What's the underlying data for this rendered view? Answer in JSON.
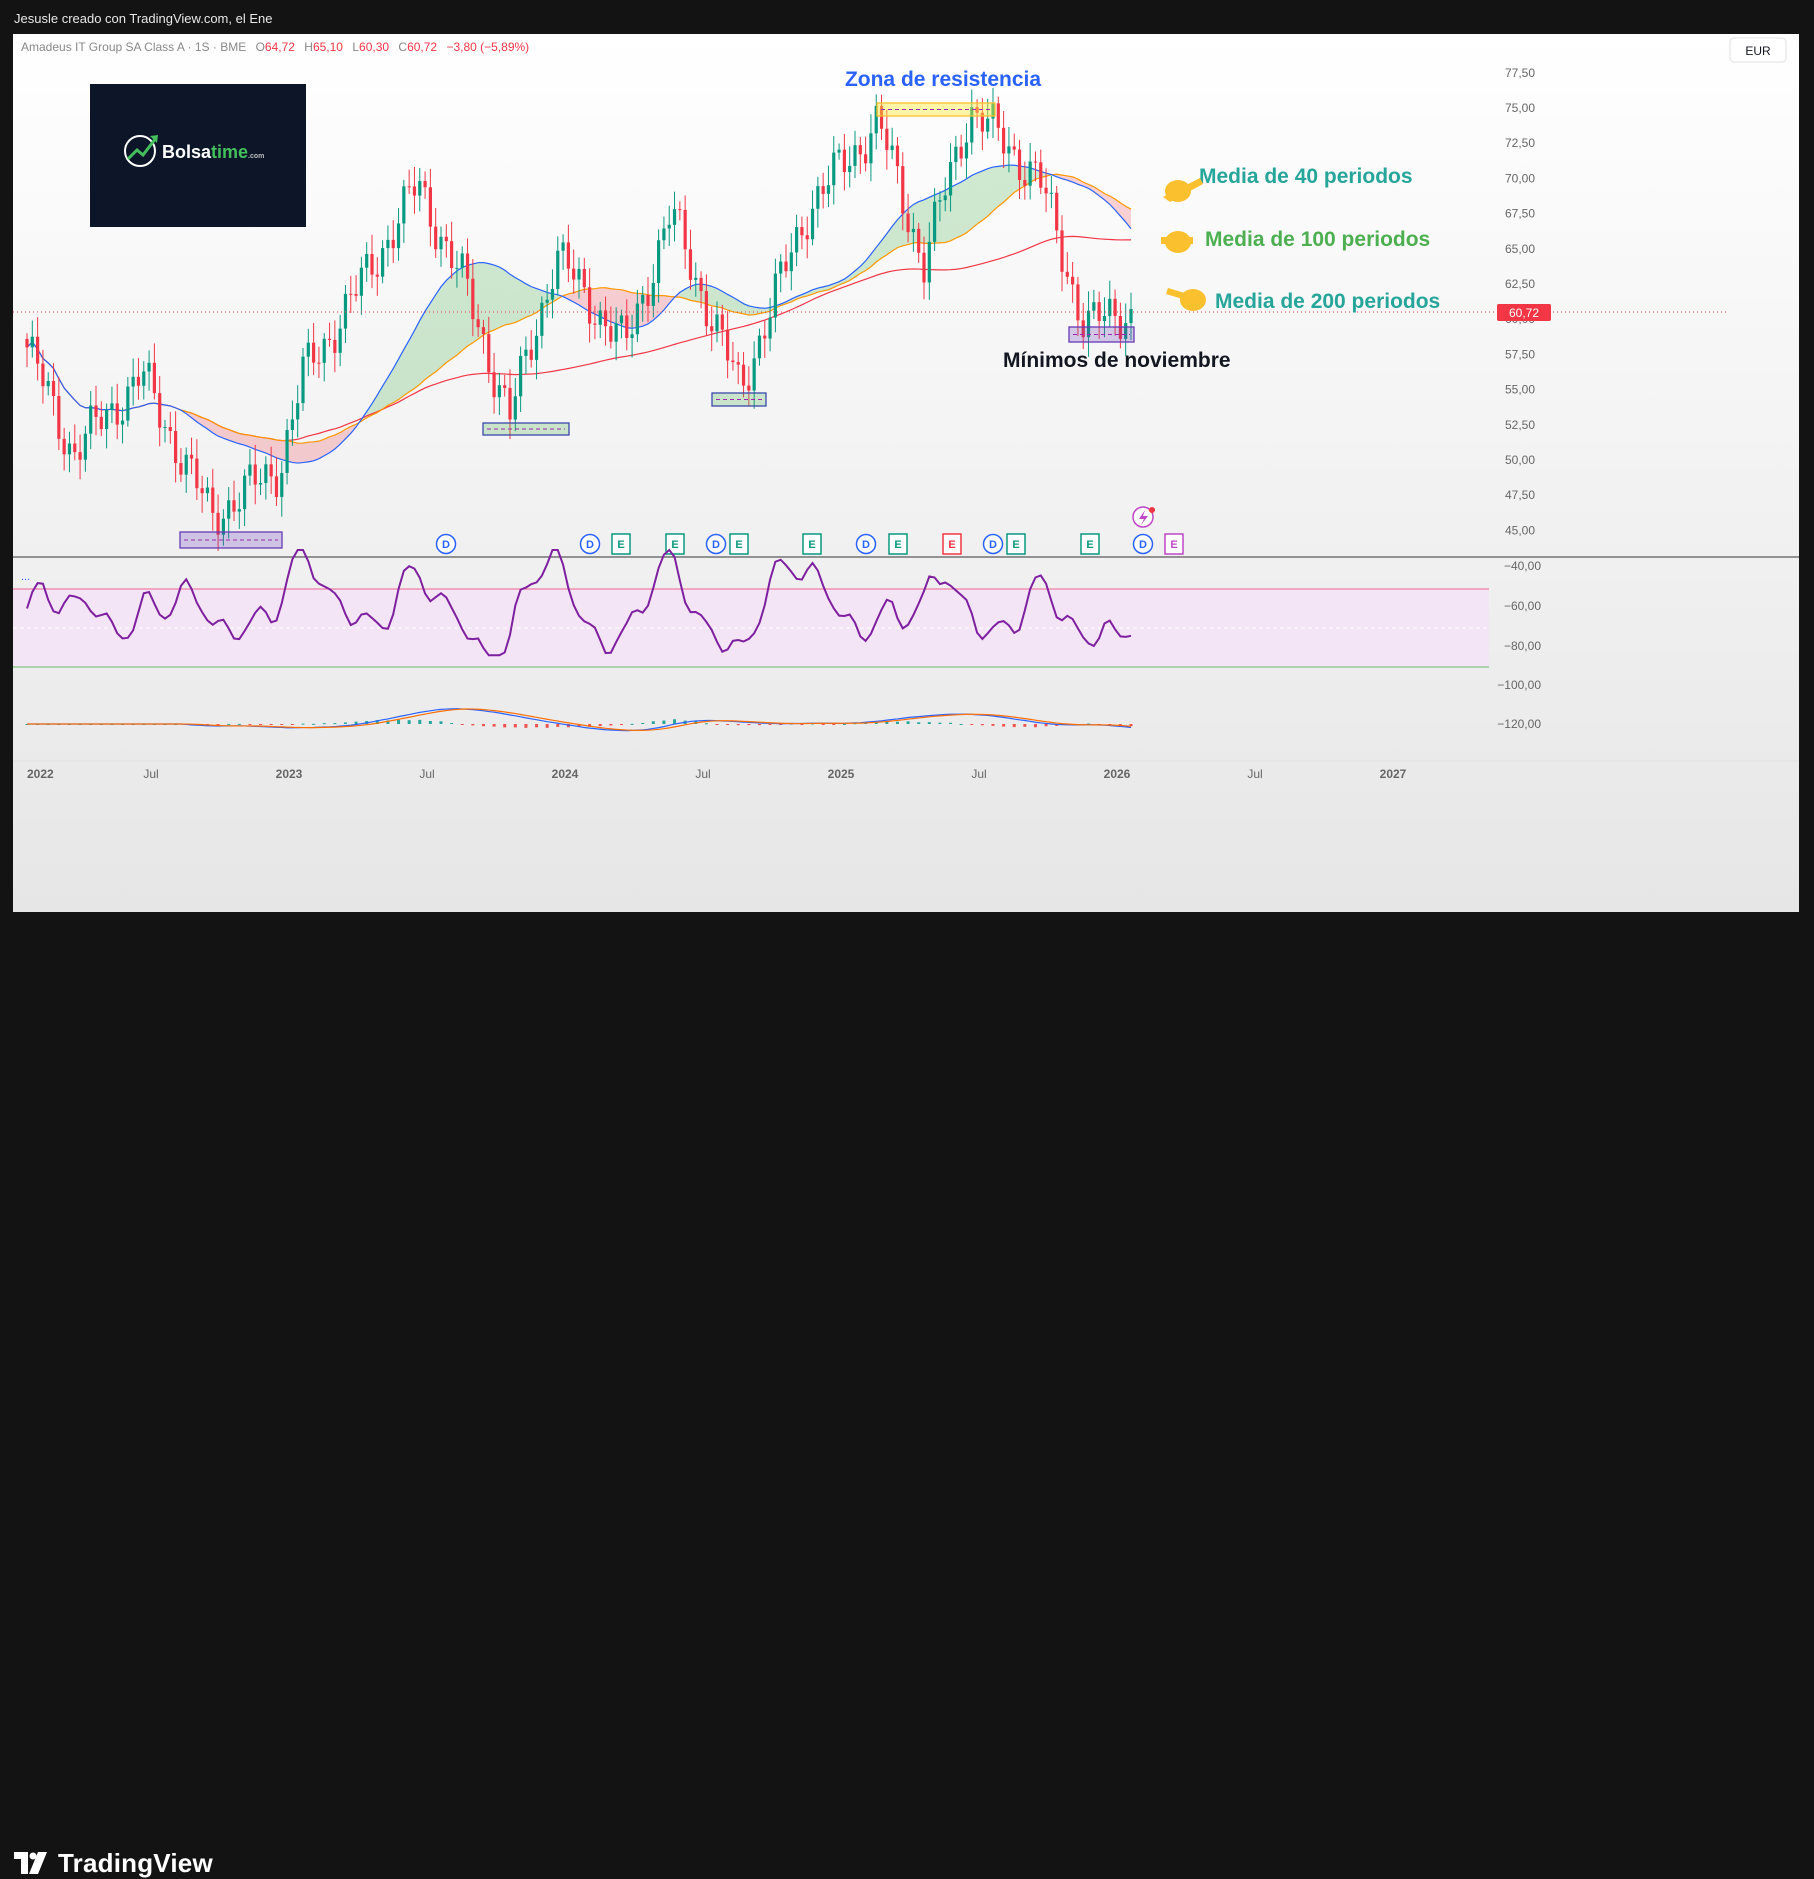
{
  "attribution": "Jesusle creado con TradingView.com, el Ene",
  "legend": {
    "name": "Amadeus IT Group SA Class A · 1S · BME",
    "o_label": "O",
    "o": "64,72",
    "h_label": "H",
    "h": "65,10",
    "l_label": "L",
    "l": "60,30",
    "c_label": "C",
    "c": "60,72",
    "change": "−3,80 (−5,89%)"
  },
  "currency": "EUR",
  "logo": {
    "brand_a": "Bolsa",
    "brand_b": "time",
    "brand_c": ".com"
  },
  "annotations": {
    "resistance": "Zona de resistencia",
    "ma40": "Media de 40 periodos",
    "ma100": "Media de 100 periodos",
    "ma200": "Media de 200 periodos",
    "november_lows": "Mínimos de noviembre"
  },
  "price_axis": {
    "labels": [
      "77,50",
      "75,00",
      "72,50",
      "70,00",
      "67,50",
      "65,00",
      "62,50",
      "60,00",
      "57,50",
      "55,00",
      "52,50",
      "50,00",
      "47,50",
      "45,00"
    ],
    "last_price": "60,72"
  },
  "rsi_axis": {
    "labels": [
      "−40,00",
      "−60,00",
      "−80,00",
      "−100,00",
      "−120,00"
    ],
    "dots": "..."
  },
  "time_axis": [
    "2022",
    "Jul",
    "2023",
    "Jul",
    "2024",
    "Jul",
    "2025",
    "Jul",
    "2026",
    "Jul",
    "2027"
  ],
  "event_markers": [
    {
      "letter": "D",
      "type": "dividend"
    },
    {
      "letter": "D",
      "type": "dividend"
    },
    {
      "letter": "E",
      "type": "earnings"
    },
    {
      "letter": "E",
      "type": "earnings"
    },
    {
      "letter": "D",
      "type": "dividend"
    },
    {
      "letter": "E",
      "type": "earnings"
    },
    {
      "letter": "E",
      "type": "earnings"
    },
    {
      "letter": "D",
      "type": "dividend"
    },
    {
      "letter": "E",
      "type": "earnings"
    },
    {
      "letter": "E",
      "type": "earnings-miss"
    },
    {
      "letter": "D",
      "type": "dividend"
    },
    {
      "letter": "E",
      "type": "earnings"
    },
    {
      "letter": "E",
      "type": "earnings"
    },
    {
      "letter": "D",
      "type": "dividend"
    },
    {
      "letter": "E",
      "type": "earnings-upcoming"
    }
  ],
  "footer_brand": "TradingView",
  "colors": {
    "up": "#089981",
    "down": "#f23645",
    "ma40": "#2962ff",
    "ma100": "#ff9800",
    "ma200": "#f23645",
    "rsi": "#7e1fa0",
    "annotation_blue": "#2962ff",
    "annotation_green": "#26a69a",
    "pointer": "#fbc02d"
  },
  "chart_data": {
    "type": "candlestick",
    "symbol": "Amadeus IT Group SA Class A",
    "interval": "1S",
    "exchange": "BME",
    "currency": "EUR",
    "ylim": [
      44,
      78
    ],
    "x_range": [
      "2021-12",
      "2027-03"
    ],
    "last_close": 60.72,
    "key_points": [
      {
        "date": "2022-01",
        "close": 58.0
      },
      {
        "date": "2022-03",
        "close": 50.5
      },
      {
        "date": "2022-06",
        "close": 56.0
      },
      {
        "date": "2022-09",
        "close": 46.0
      },
      {
        "date": "2022-12",
        "close": 49.5
      },
      {
        "date": "2023-01",
        "close": 56.0
      },
      {
        "date": "2023-03",
        "close": 61.0
      },
      {
        "date": "2023-06",
        "close": 69.5
      },
      {
        "date": "2023-08",
        "close": 62.5
      },
      {
        "date": "2023-10",
        "close": 53.0
      },
      {
        "date": "2023-12",
        "close": 64.5
      },
      {
        "date": "2024-03",
        "close": 58.0
      },
      {
        "date": "2024-05",
        "close": 67.5
      },
      {
        "date": "2024-08",
        "close": 55.0
      },
      {
        "date": "2024-11",
        "close": 68.0
      },
      {
        "date": "2025-02",
        "close": 74.0
      },
      {
        "date": "2025-04",
        "close": 64.0
      },
      {
        "date": "2025-06",
        "close": 75.0
      },
      {
        "date": "2025-09",
        "close": 70.0
      },
      {
        "date": "2025-11",
        "close": 59.5
      },
      {
        "date": "2026-01",
        "close": 60.72
      }
    ],
    "series": [
      {
        "name": "Media de 40 periodos",
        "type": "line",
        "last": 68.0
      },
      {
        "name": "Media de 100 periodos",
        "type": "line",
        "last": 66.0
      },
      {
        "name": "Media de 200 periodos",
        "type": "line",
        "last": 62.0
      }
    ],
    "oscillator": {
      "ylim": [
        -125,
        -38
      ],
      "bands": [
        -60,
        -80
      ],
      "last": -84
    },
    "zones": [
      {
        "label": "Zona de resistencia",
        "range": [
          74.5,
          75.5
        ]
      },
      {
        "label": "Mínimos de noviembre",
        "range": [
          58.8,
          59.8
        ]
      }
    ]
  }
}
